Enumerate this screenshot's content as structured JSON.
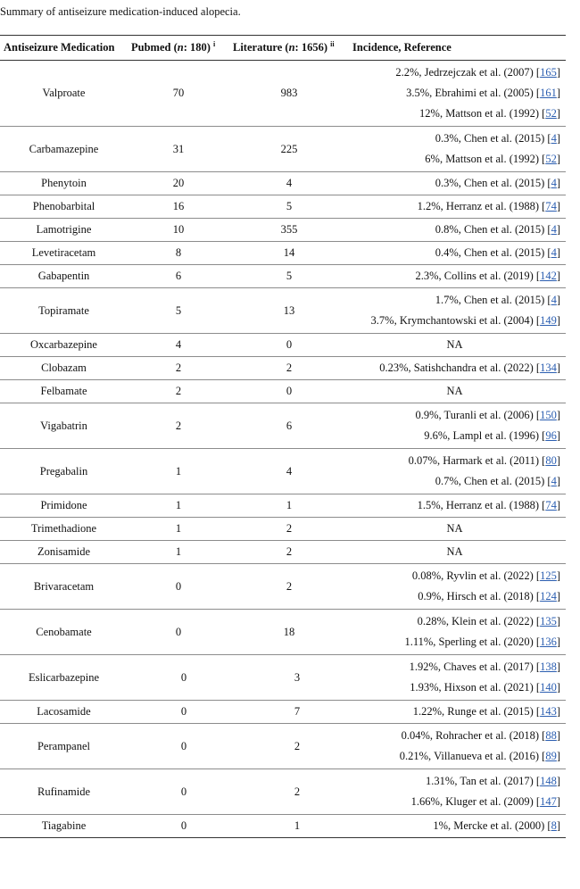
{
  "caption": "Summary of antiseizure medication-induced alopecia.",
  "headers": {
    "medication": "Antiseizure Medication",
    "pubmed_prefix": "Pubmed (",
    "pubmed_n": "n",
    "pubmed_count": ": 180)",
    "pubmed_note": "i",
    "literature_prefix": "Literature (",
    "literature_n": "n",
    "literature_count": ": 1656)",
    "literature_note": "ii",
    "incidence": "Incidence, Reference"
  },
  "rows": [
    {
      "drug": "Valproate",
      "pubmed": "70",
      "literature": "983",
      "refs": [
        {
          "text": "2.2%, Jedrzejczak et al. (2007) [",
          "ref": "165"
        },
        {
          "text": "3.5%, Ebrahimi et al. (2005) [",
          "ref": "161"
        },
        {
          "text": "12%, Mattson et al. (1992) [",
          "ref": "52"
        }
      ]
    },
    {
      "drug": "Carbamazepine",
      "pubmed": "31",
      "literature": "225",
      "refs": [
        {
          "text": "0.3%, Chen et al. (2015) [",
          "ref": "4"
        },
        {
          "text": "6%, Mattson et al. (1992) [",
          "ref": "52"
        }
      ]
    },
    {
      "drug": "Phenytoin",
      "pubmed": "20",
      "literature": "4",
      "refs": [
        {
          "text": "0.3%, Chen et al. (2015) [",
          "ref": "4"
        }
      ]
    },
    {
      "drug": "Phenobarbital",
      "pubmed": "16",
      "literature": "5",
      "refs": [
        {
          "text": "1.2%, Herranz et al. (1988) [",
          "ref": "74"
        }
      ]
    },
    {
      "drug": "Lamotrigine",
      "pubmed": "10",
      "literature": "355",
      "refs": [
        {
          "text": "0.8%, Chen et al. (2015) [",
          "ref": "4"
        }
      ]
    },
    {
      "drug": "Levetiracetam",
      "pubmed": "8",
      "literature": "14",
      "refs": [
        {
          "text": "0.4%, Chen et al. (2015) [",
          "ref": "4"
        }
      ]
    },
    {
      "drug": "Gabapentin",
      "pubmed": "6",
      "literature": "5",
      "refs": [
        {
          "text": "2.3%, Collins et al. (2019) [",
          "ref": "142"
        }
      ]
    },
    {
      "drug": "Topiramate",
      "pubmed": "5",
      "literature": "13",
      "refs": [
        {
          "text": "1.7%, Chen et al. (2015) [",
          "ref": "4"
        },
        {
          "text": "3.7%, Krymchantowski et al. (2004) [",
          "ref": "149"
        }
      ]
    },
    {
      "drug": "Oxcarbazepine",
      "pubmed": "4",
      "literature": "0",
      "refs": [
        {
          "text": "NA",
          "ref": ""
        }
      ]
    },
    {
      "drug": "Clobazam",
      "pubmed": "2",
      "literature": "2",
      "refs": [
        {
          "text": "0.23%, Satishchandra et al. (2022) [",
          "ref": "134"
        }
      ]
    },
    {
      "drug": "Felbamate",
      "pubmed": "2",
      "literature": "0",
      "refs": [
        {
          "text": "NA",
          "ref": ""
        }
      ]
    },
    {
      "drug": "Vigabatrin",
      "pubmed": "2",
      "literature": "6",
      "refs": [
        {
          "text": "0.9%, Turanli et al. (2006) [",
          "ref": "150"
        },
        {
          "text": "9.6%, Lampl et al. (1996) [",
          "ref": "96"
        }
      ]
    },
    {
      "drug": "Pregabalin",
      "pubmed": "1",
      "literature": "4",
      "refs": [
        {
          "text": "0.07%, Harmark et al. (2011) [",
          "ref": "80"
        },
        {
          "text": "0.7%, Chen et al. (2015) [",
          "ref": "4"
        }
      ]
    },
    {
      "drug": "Primidone",
      "pubmed": "1",
      "literature": "1",
      "refs": [
        {
          "text": "1.5%, Herranz et al. (1988) [",
          "ref": "74"
        }
      ]
    },
    {
      "drug": "Trimethadione",
      "pubmed": "1",
      "literature": "2",
      "refs": [
        {
          "text": "NA",
          "ref": ""
        }
      ]
    },
    {
      "drug": "Zonisamide",
      "pubmed": "1",
      "literature": "2",
      "refs": [
        {
          "text": "NA",
          "ref": ""
        }
      ]
    },
    {
      "drug": "Brivaracetam",
      "pubmed": "0",
      "literature": "2",
      "refs": [
        {
          "text": "0.08%, Ryvlin et al. (2022) [",
          "ref": "125"
        },
        {
          "text": "0.9%, Hirsch et al. (2018) [",
          "ref": "124"
        }
      ]
    },
    {
      "drug": "Cenobamate",
      "pubmed": "0",
      "literature": "18",
      "refs": [
        {
          "text": "0.28%, Klein et al. (2022) [",
          "ref": "135"
        },
        {
          "text": "1.11%, Sperling et al. (2020) [",
          "ref": "136"
        }
      ]
    },
    {
      "drug": "Eslicarbazepine",
      "pubmed": "0",
      "literature": "3",
      "refs": [
        {
          "text": "1.92%, Chaves et al. (2017) [",
          "ref": "138"
        },
        {
          "text": "1.93%, Hixson et al. (2021) [",
          "ref": "140"
        }
      ]
    },
    {
      "drug": "Lacosamide",
      "pubmed": "0",
      "literature": "7",
      "refs": [
        {
          "text": "1.22%, Runge et al. (2015) [",
          "ref": "143"
        }
      ]
    },
    {
      "drug": "Perampanel",
      "pubmed": "0",
      "literature": "2",
      "refs": [
        {
          "text": "0.04%, Rohracher et al. (2018) [",
          "ref": "88"
        },
        {
          "text": "0.21%, Villanueva et al. (2016) [",
          "ref": "89"
        }
      ]
    },
    {
      "drug": "Rufinamide",
      "pubmed": "0",
      "literature": "2",
      "refs": [
        {
          "text": "1.31%, Tan et al. (2017) [",
          "ref": "148"
        },
        {
          "text": "1.66%, Kluger et al. (2009) [",
          "ref": "147"
        }
      ]
    },
    {
      "drug": "Tiagabine",
      "pubmed": "0",
      "literature": "1",
      "refs": [
        {
          "text": "1%, Mercke et al. (2000) [",
          "ref": "8"
        }
      ]
    }
  ]
}
